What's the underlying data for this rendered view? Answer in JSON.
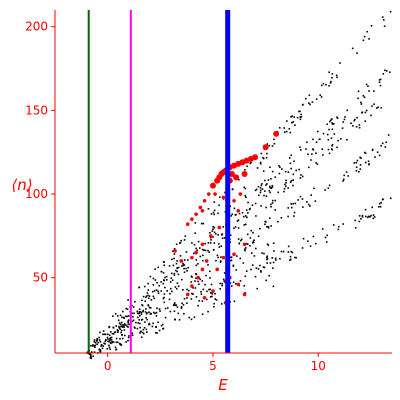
{
  "chart_data": {
    "type": "scatter",
    "title": "",
    "xlabel": "E",
    "ylabel": "⟨n⟩",
    "xlim": [
      -2.5,
      13.5
    ],
    "ylim": [
      5,
      210
    ],
    "x_ticks": [
      0,
      5,
      10
    ],
    "y_ticks": [
      50,
      100,
      150,
      200
    ],
    "grid": false,
    "legend": "none",
    "colors": {
      "axes": "#ff0000",
      "points": "#000000",
      "highlight": "#ff0000",
      "line_green": "#006400",
      "line_magenta": "#ff00ff",
      "line_blue": "#0000ff"
    },
    "vertical_lines": [
      {
        "x": -0.9,
        "color": "#006400",
        "width": 2
      },
      {
        "x": 1.1,
        "color": "#ff00ff",
        "width": 2
      },
      {
        "x": 5.7,
        "color": "#0000ff",
        "width": 5
      }
    ],
    "highlight_points": [
      [
        5.2,
        108
      ],
      [
        5.3,
        110
      ],
      [
        5.4,
        112
      ],
      [
        5.5,
        113
      ],
      [
        5.6,
        114
      ],
      [
        5.7,
        115
      ],
      [
        5.8,
        116
      ],
      [
        6.0,
        117
      ],
      [
        6.2,
        118
      ],
      [
        6.4,
        119
      ],
      [
        6.6,
        120
      ],
      [
        6.8,
        121
      ],
      [
        5.0,
        105
      ],
      [
        4.8,
        100
      ],
      [
        4.6,
        96
      ],
      [
        4.4,
        92
      ],
      [
        4.2,
        88
      ],
      [
        4.0,
        85
      ],
      [
        5.9,
        112
      ],
      [
        6.1,
        110
      ],
      [
        6.5,
        112
      ],
      [
        7.0,
        122
      ],
      [
        7.5,
        128
      ],
      [
        8.0,
        136
      ],
      [
        3.8,
        82
      ],
      [
        4.5,
        90
      ],
      [
        5.1,
        100
      ],
      [
        5.5,
        98
      ],
      [
        6.0,
        96
      ],
      [
        6.3,
        100
      ],
      [
        5.8,
        108
      ],
      [
        6.2,
        90
      ],
      [
        5.3,
        80
      ],
      [
        4.9,
        75
      ],
      [
        4.5,
        70
      ],
      [
        4.2,
        65
      ],
      [
        4.0,
        62
      ],
      [
        3.5,
        60
      ],
      [
        3.2,
        66
      ],
      [
        4.7,
        60
      ],
      [
        5.5,
        62
      ],
      [
        6.0,
        64
      ],
      [
        6.5,
        70
      ],
      [
        5.2,
        55
      ],
      [
        4.5,
        55
      ],
      [
        5.8,
        50
      ],
      [
        6.2,
        46
      ],
      [
        4.3,
        50
      ],
      [
        4.0,
        45
      ],
      [
        5.0,
        42
      ],
      [
        3.8,
        40
      ],
      [
        4.6,
        38
      ],
      [
        5.6,
        35
      ],
      [
        6.5,
        40
      ]
    ],
    "series_lines": [
      {
        "x0": -1.0,
        "y0": 5,
        "x1": 13.5,
        "y1": 210
      },
      {
        "x0": -1.0,
        "y0": 5,
        "x1": 13.5,
        "y1": 175
      },
      {
        "x0": -1.0,
        "y0": 5,
        "x1": 13.5,
        "y1": 132
      },
      {
        "x0": -1.0,
        "y0": 5,
        "x1": 13.5,
        "y1": 95
      },
      {
        "x0": -1.0,
        "y0": 5,
        "x1": 13.0,
        "y1": 155
      }
    ]
  }
}
